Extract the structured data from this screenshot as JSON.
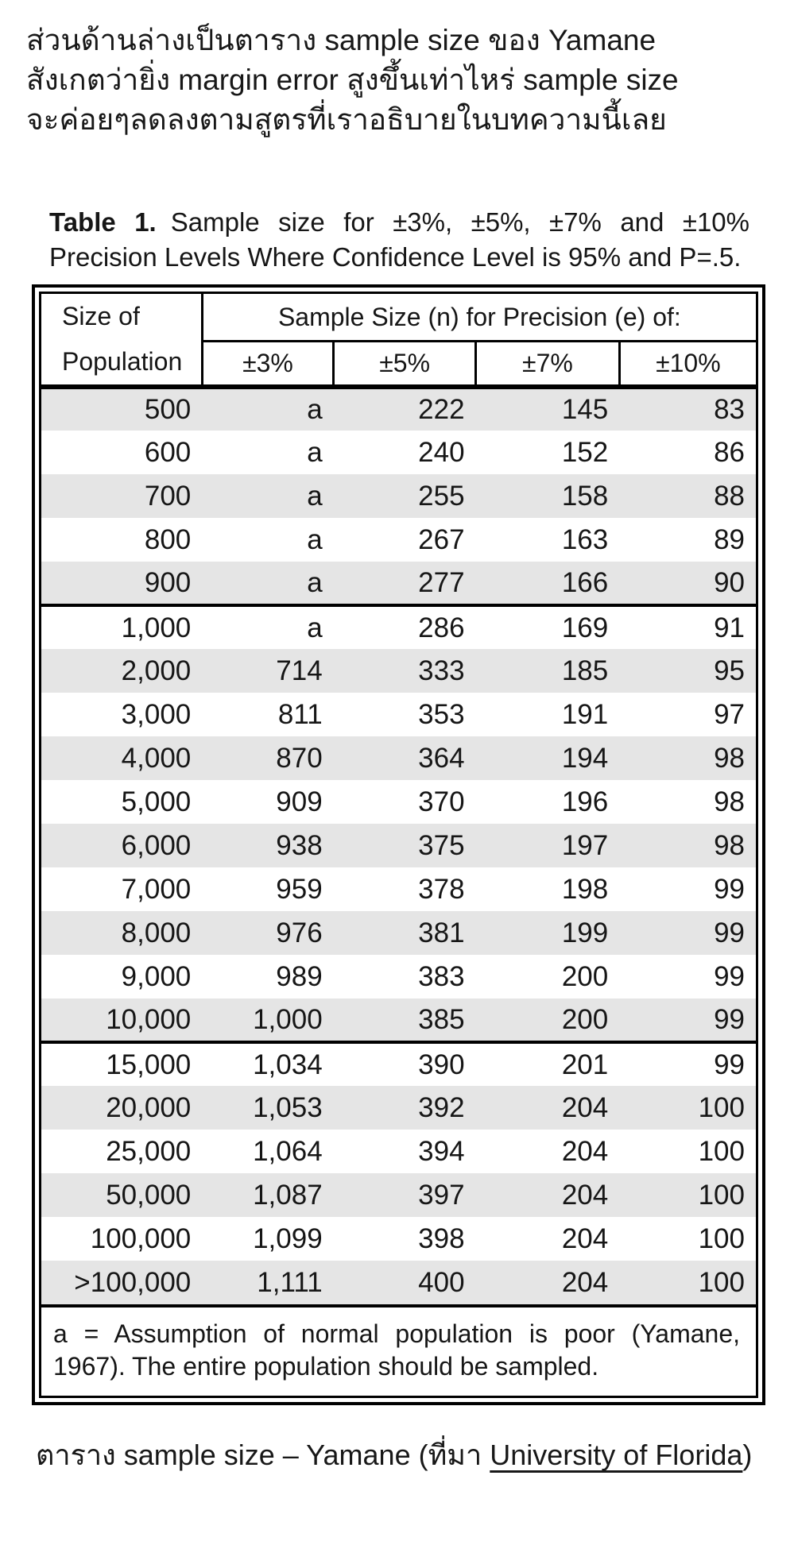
{
  "intro": {
    "lines": [
      "ส่วนด้านล่างเป็นตาราง sample size ของ Yamane",
      "สังเกตว่ายิ่ง margin error สูงขึ้นเท่าไหร่ sample size",
      "จะค่อยๆลดลงตามสูตรที่เราอธิบายในบทความนี้เลย"
    ]
  },
  "table": {
    "title_label": "Table 1.",
    "title_text": "Sample size for ±3%, ±5%, ±7% and ±10% Precision Levels Where Confidence Level is 95% and P=.5.",
    "header": {
      "population_line1": "Size of",
      "population_line2": "Population",
      "span_header": "Sample Size (n) for Precision (e) of:",
      "precision_columns": [
        "±3%",
        "±5%",
        "±7%",
        "±10%"
      ]
    },
    "rows": [
      {
        "population": "500",
        "cells": [
          "a",
          "222",
          "145",
          "83"
        ],
        "shaded": true,
        "group_start": false
      },
      {
        "population": "600",
        "cells": [
          "a",
          "240",
          "152",
          "86"
        ],
        "shaded": false,
        "group_start": false
      },
      {
        "population": "700",
        "cells": [
          "a",
          "255",
          "158",
          "88"
        ],
        "shaded": true,
        "group_start": false
      },
      {
        "population": "800",
        "cells": [
          "a",
          "267",
          "163",
          "89"
        ],
        "shaded": false,
        "group_start": false
      },
      {
        "population": "900",
        "cells": [
          "a",
          "277",
          "166",
          "90"
        ],
        "shaded": true,
        "group_start": false
      },
      {
        "population": "1,000",
        "cells": [
          "a",
          "286",
          "169",
          "91"
        ],
        "shaded": false,
        "group_start": true
      },
      {
        "population": "2,000",
        "cells": [
          "714",
          "333",
          "185",
          "95"
        ],
        "shaded": true,
        "group_start": false
      },
      {
        "population": "3,000",
        "cells": [
          "811",
          "353",
          "191",
          "97"
        ],
        "shaded": false,
        "group_start": false
      },
      {
        "population": "4,000",
        "cells": [
          "870",
          "364",
          "194",
          "98"
        ],
        "shaded": true,
        "group_start": false
      },
      {
        "population": "5,000",
        "cells": [
          "909",
          "370",
          "196",
          "98"
        ],
        "shaded": false,
        "group_start": false
      },
      {
        "population": "6,000",
        "cells": [
          "938",
          "375",
          "197",
          "98"
        ],
        "shaded": true,
        "group_start": false
      },
      {
        "population": "7,000",
        "cells": [
          "959",
          "378",
          "198",
          "99"
        ],
        "shaded": false,
        "group_start": false
      },
      {
        "population": "8,000",
        "cells": [
          "976",
          "381",
          "199",
          "99"
        ],
        "shaded": true,
        "group_start": false
      },
      {
        "population": "9,000",
        "cells": [
          "989",
          "383",
          "200",
          "99"
        ],
        "shaded": false,
        "group_start": false
      },
      {
        "population": "10,000",
        "cells": [
          "1,000",
          "385",
          "200",
          "99"
        ],
        "shaded": true,
        "group_start": false
      },
      {
        "population": "15,000",
        "cells": [
          "1,034",
          "390",
          "201",
          "99"
        ],
        "shaded": false,
        "group_start": true
      },
      {
        "population": "20,000",
        "cells": [
          "1,053",
          "392",
          "204",
          "100"
        ],
        "shaded": true,
        "group_start": false
      },
      {
        "population": "25,000",
        "cells": [
          "1,064",
          "394",
          "204",
          "100"
        ],
        "shaded": false,
        "group_start": false
      },
      {
        "population": "50,000",
        "cells": [
          "1,087",
          "397",
          "204",
          "100"
        ],
        "shaded": true,
        "group_start": false
      },
      {
        "population": "100,000",
        "cells": [
          "1,099",
          "398",
          "204",
          "100"
        ],
        "shaded": false,
        "group_start": false
      },
      {
        "population": ">100,000",
        "cells": [
          "1,111",
          "400",
          "204",
          "100"
        ],
        "shaded": true,
        "group_start": false
      }
    ],
    "footnote": "a = Assumption of normal population is poor (Yamane, 1967).  The entire population should be sampled."
  },
  "caption": {
    "prefix": "ตาราง sample size – Yamane (ที่มา ",
    "link_text": "University of Florida",
    "suffix": ")"
  },
  "colors": {
    "stripe": "#e5e5e5",
    "border": "#000000",
    "text": "#161616"
  }
}
